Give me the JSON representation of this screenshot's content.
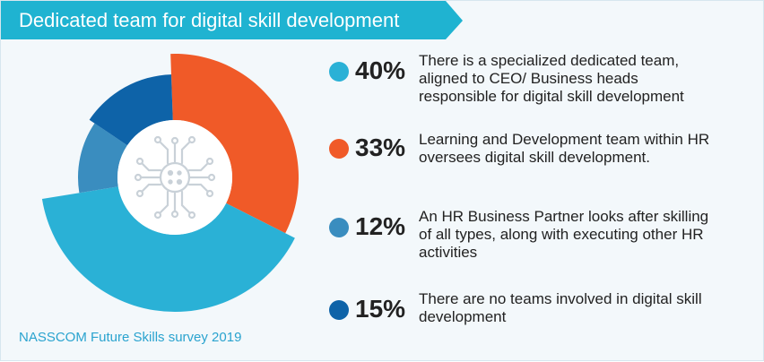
{
  "header": {
    "title": "Dedicated team for digital skill development"
  },
  "footer": {
    "source": "NASSCOM Future Skills survey 2019"
  },
  "chart_data": {
    "type": "pie",
    "title": "Dedicated team for digital skill development",
    "slices": [
      {
        "label": "There is a specialized dedicated team, aligned to CEO/ Business heads responsible for digital skill development",
        "value": 40,
        "value_label": "40%",
        "color": "#2ab1d6"
      },
      {
        "label": "Learning and Development team within HR oversees digital skill development.",
        "value": 33,
        "value_label": "33%",
        "color": "#f05a28"
      },
      {
        "label": "An HR Business Partner looks after skilling of all types, along with executing other HR activities",
        "value": 12,
        "value_label": "12%",
        "color": "#3a8dbf"
      },
      {
        "label": "There are no teams involved in digital skill development",
        "value": 15,
        "value_label": "15%",
        "color": "#0e63a8"
      }
    ]
  },
  "center_icon": {
    "name": "circuit-chip-icon",
    "color": "#c9d1d8"
  }
}
